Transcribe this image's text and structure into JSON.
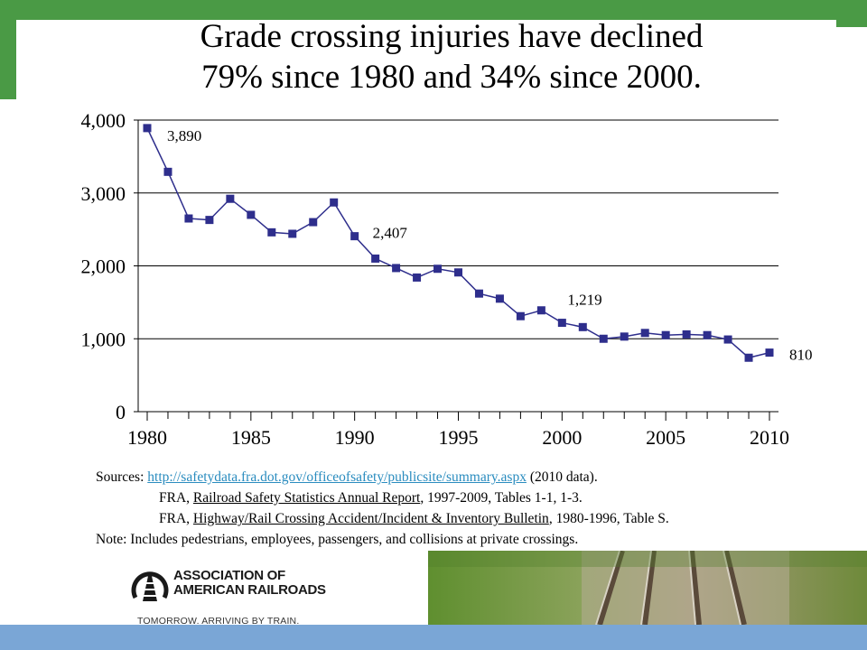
{
  "title": {
    "line1": "Grade crossing injuries have declined",
    "line2": "79% since 1980 and 34% since 2000."
  },
  "chart_data": {
    "type": "line",
    "title": "Grade crossing injuries have declined 79% since 1980 and 34% since 2000.",
    "xlabel": "",
    "ylabel": "",
    "xlim": [
      1980,
      2010
    ],
    "ylim": [
      0,
      4000
    ],
    "grid": "horizontal",
    "yticks": [
      0,
      1000,
      2000,
      3000,
      4000
    ],
    "ytick_labels": [
      "0",
      "1,000",
      "2,000",
      "3,000",
      "4,000"
    ],
    "xticks": [
      1980,
      1985,
      1990,
      1995,
      2000,
      2005,
      2010
    ],
    "xtick_labels": [
      "1980",
      "1985",
      "1990",
      "1995",
      "2000",
      "2005",
      "2010"
    ],
    "x": [
      1980,
      1981,
      1982,
      1983,
      1984,
      1985,
      1986,
      1987,
      1988,
      1989,
      1990,
      1991,
      1992,
      1993,
      1994,
      1995,
      1996,
      1997,
      1998,
      1999,
      2000,
      2001,
      2002,
      2003,
      2004,
      2005,
      2006,
      2007,
      2008,
      2009,
      2010
    ],
    "series": [
      {
        "color": "#2e2e8c",
        "values": [
          3890,
          3290,
          2650,
          2630,
          2920,
          2700,
          2460,
          2440,
          2600,
          2870,
          2407,
          2100,
          1970,
          1840,
          1960,
          1910,
          1620,
          1550,
          1310,
          1390,
          1219,
          1160,
          1000,
          1030,
          1080,
          1050,
          1060,
          1050,
          990,
          740,
          810
        ]
      }
    ],
    "annotations": [
      {
        "x": 1980,
        "value": 3890,
        "text": "3,890"
      },
      {
        "x": 1990,
        "value": 2407,
        "text": "2,407"
      },
      {
        "x": 2000,
        "value": 1219,
        "text": "1,219"
      },
      {
        "x": 2010,
        "value": 810,
        "text": "810"
      }
    ]
  },
  "sources": {
    "label": "Sources:",
    "link": "http://safetydata.fra.dot.gov/officeofsafety/publicsite/summary.aspx",
    "link_suffix": " (2010 data).",
    "line2_prefix": "FRA, ",
    "line2_title": "Railroad Safety Statistics Annual Report",
    "line2_suffix": ", 1997-2009, Tables 1-1, 1-3.",
    "line3_prefix": "FRA, ",
    "line3_title": "Highway/Rail Crossing Accident/Incident & Inventory Bulletin",
    "line3_suffix": ", 1980-1996, Table S.",
    "note": "Note:  Includes pedestrians, employees, passengers, and collisions at private crossings."
  },
  "footer": {
    "logo_line1": "ASSOCIATION OF",
    "logo_line2": "AMERICAN RAILROADS",
    "tagline": "TOMORROW. ARRIVING BY TRAIN."
  },
  "colors": {
    "accent_green": "#4a9a45",
    "marker": "#2e2e8c",
    "link": "#2a8cbf",
    "bottom_band": "#7aa6d6"
  }
}
